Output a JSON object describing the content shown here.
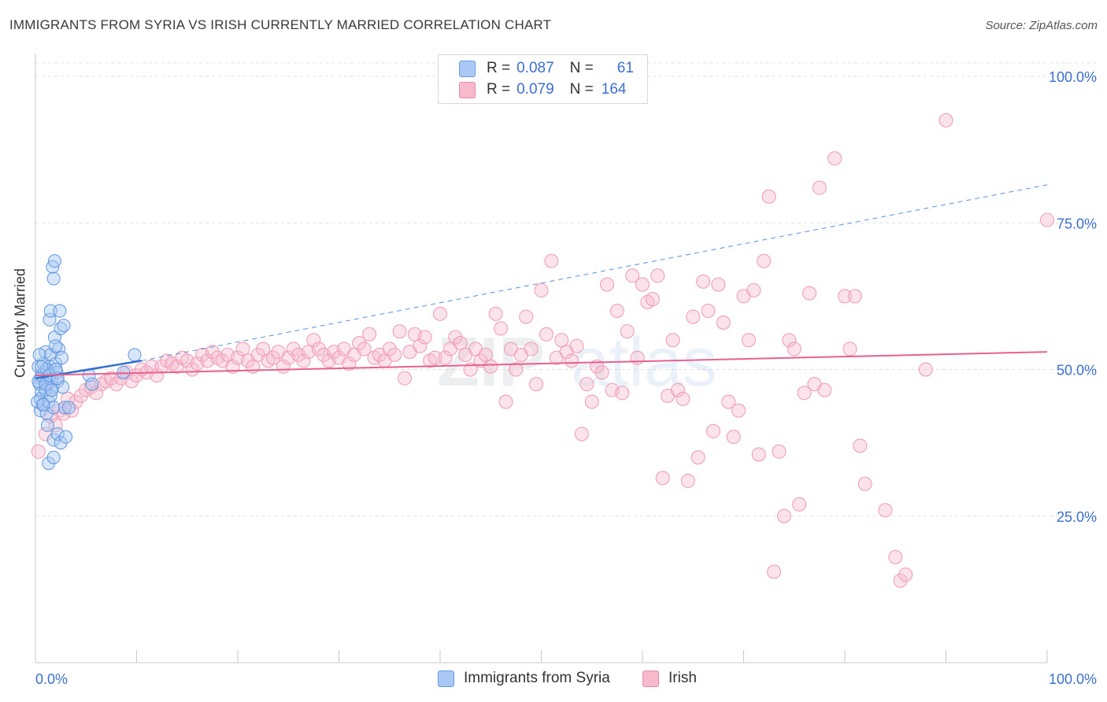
{
  "header": {
    "title": "IMMIGRANTS FROM SYRIA VS IRISH CURRENTLY MARRIED CORRELATION CHART",
    "source": "Source: ZipAtlas.com"
  },
  "legend": {
    "rows": [
      {
        "r_label": "R =",
        "r_value": "0.087",
        "n_label": "N =",
        "n_value": "61",
        "color": "#a9c8f5"
      },
      {
        "r_label": "R =",
        "r_value": "0.079",
        "n_label": "N =",
        "n_value": "164",
        "color": "#f7b9cc"
      }
    ]
  },
  "bottom_legend": {
    "items": [
      {
        "label": "Immigrants from Syria",
        "color": "#a9c8f5"
      },
      {
        "label": "Irish",
        "color": "#f7b9cc"
      }
    ]
  },
  "watermark": {
    "zip": "ZIP",
    "atlas": "atlas"
  },
  "chart_data": {
    "type": "scatter",
    "ylabel": "Currently Married",
    "x_tick_labels": {
      "left": "0.0%",
      "right": "100.0%"
    },
    "y_tick_labels": [
      "100.0%",
      "75.0%",
      "50.0%",
      "25.0%"
    ],
    "xlim": [
      0,
      100
    ],
    "ylim": [
      0,
      100
    ],
    "grid": true,
    "colors": {
      "syria": "#4a86d8",
      "irish": "#ef88a8",
      "syria_line": "#2f6fcf",
      "irish_line": "#e8608f",
      "axis_text": "#3d6fd0"
    },
    "series": [
      {
        "name": "Immigrants from Syria",
        "trend": {
          "x0": 0,
          "y0": 48.5,
          "x1": 10.5,
          "y1": 51.5,
          "dash_to_x": 100,
          "dash_to_y": 81.5
        },
        "points": [
          [
            0.3,
            50.5
          ],
          [
            0.5,
            48.5
          ],
          [
            0.4,
            47.5
          ],
          [
            0.6,
            46.0
          ],
          [
            0.5,
            45.0
          ],
          [
            0.7,
            44.0
          ],
          [
            0.5,
            43.0
          ],
          [
            0.8,
            51.0
          ],
          [
            1.0,
            53.0
          ],
          [
            0.9,
            49.5
          ],
          [
            1.2,
            47.5
          ],
          [
            1.0,
            46.5
          ],
          [
            1.3,
            44.5
          ],
          [
            1.1,
            42.5
          ],
          [
            1.5,
            52.5
          ],
          [
            1.4,
            50.5
          ],
          [
            1.6,
            48.5
          ],
          [
            1.7,
            47.0
          ],
          [
            1.5,
            45.5
          ],
          [
            1.8,
            43.5
          ],
          [
            2.0,
            51.0
          ],
          [
            2.1,
            49.5
          ],
          [
            2.2,
            48.0
          ],
          [
            2.3,
            53.5
          ],
          [
            1.9,
            55.5
          ],
          [
            1.4,
            58.5
          ],
          [
            1.5,
            60.0
          ],
          [
            1.7,
            67.5
          ],
          [
            1.8,
            65.5
          ],
          [
            1.9,
            68.5
          ],
          [
            2.4,
            60.0
          ],
          [
            2.5,
            57.0
          ],
          [
            2.8,
            57.5
          ],
          [
            2.0,
            54.0
          ],
          [
            2.6,
            52.0
          ],
          [
            2.7,
            47.0
          ],
          [
            1.2,
            40.5
          ],
          [
            1.8,
            38.0
          ],
          [
            2.2,
            39.0
          ],
          [
            2.5,
            37.5
          ],
          [
            3.0,
            38.5
          ],
          [
            1.3,
            34.0
          ],
          [
            1.8,
            35.0
          ],
          [
            5.3,
            49.0
          ],
          [
            5.6,
            47.5
          ],
          [
            8.7,
            49.5
          ],
          [
            9.8,
            52.5
          ],
          [
            0.2,
            44.5
          ],
          [
            0.3,
            48.0
          ],
          [
            0.6,
            49.0
          ],
          [
            1.0,
            47.5
          ],
          [
            1.1,
            50.0
          ],
          [
            1.4,
            49.0
          ],
          [
            0.8,
            44.0
          ],
          [
            2.0,
            50.0
          ],
          [
            2.2,
            48.5
          ],
          [
            0.4,
            52.5
          ],
          [
            0.6,
            50.5
          ],
          [
            1.6,
            46.5
          ],
          [
            2.9,
            43.5
          ],
          [
            3.3,
            43.5
          ]
        ]
      },
      {
        "name": "Irish",
        "trend": {
          "x0": 0,
          "y0": 49.0,
          "x1": 100,
          "y1": 53.0
        },
        "points": [
          [
            0.3,
            36.0
          ],
          [
            1.0,
            39.0
          ],
          [
            1.5,
            42.0
          ],
          [
            2.0,
            40.5
          ],
          [
            2.4,
            43.0
          ],
          [
            2.8,
            42.5
          ],
          [
            3.2,
            45.0
          ],
          [
            3.6,
            43.0
          ],
          [
            4.0,
            44.5
          ],
          [
            4.5,
            45.5
          ],
          [
            5.0,
            46.5
          ],
          [
            5.5,
            47.0
          ],
          [
            6.0,
            46.0
          ],
          [
            6.5,
            47.5
          ],
          [
            7.0,
            48.0
          ],
          [
            7.5,
            48.5
          ],
          [
            8.0,
            47.5
          ],
          [
            8.5,
            48.5
          ],
          [
            9.0,
            49.5
          ],
          [
            9.5,
            48.0
          ],
          [
            10.0,
            49.0
          ],
          [
            10.5,
            50.0
          ],
          [
            11.0,
            49.5
          ],
          [
            11.5,
            50.5
          ],
          [
            12.0,
            49.0
          ],
          [
            12.5,
            50.5
          ],
          [
            13.0,
            51.5
          ],
          [
            13.5,
            51.0
          ],
          [
            14.0,
            50.5
          ],
          [
            14.5,
            52.0
          ],
          [
            15.0,
            51.5
          ],
          [
            15.5,
            50.0
          ],
          [
            16.0,
            51.0
          ],
          [
            16.5,
            52.5
          ],
          [
            17.0,
            51.5
          ],
          [
            17.5,
            53.0
          ],
          [
            18.0,
            52.0
          ],
          [
            18.5,
            51.5
          ],
          [
            19.0,
            52.5
          ],
          [
            19.5,
            50.5
          ],
          [
            20.0,
            52.0
          ],
          [
            20.5,
            53.5
          ],
          [
            21.0,
            51.5
          ],
          [
            21.5,
            50.5
          ],
          [
            22.0,
            52.5
          ],
          [
            22.5,
            53.5
          ],
          [
            23.0,
            51.5
          ],
          [
            23.5,
            52.0
          ],
          [
            24.0,
            53.0
          ],
          [
            24.5,
            50.5
          ],
          [
            25.0,
            52.0
          ],
          [
            25.5,
            53.5
          ],
          [
            26.0,
            52.5
          ],
          [
            26.5,
            51.5
          ],
          [
            27.0,
            53.0
          ],
          [
            27.5,
            55.0
          ],
          [
            28.0,
            53.5
          ],
          [
            28.5,
            52.5
          ],
          [
            29.0,
            51.5
          ],
          [
            29.5,
            53.0
          ],
          [
            30.0,
            52.0
          ],
          [
            30.5,
            53.5
          ],
          [
            31.0,
            51.0
          ],
          [
            31.5,
            52.5
          ],
          [
            32.0,
            54.5
          ],
          [
            32.5,
            53.5
          ],
          [
            33.0,
            56.0
          ],
          [
            33.5,
            52.0
          ],
          [
            34.0,
            52.5
          ],
          [
            34.5,
            51.5
          ],
          [
            35.0,
            53.5
          ],
          [
            35.5,
            52.5
          ],
          [
            36.0,
            56.5
          ],
          [
            36.5,
            48.5
          ],
          [
            37.0,
            53.0
          ],
          [
            37.5,
            56.0
          ],
          [
            38.0,
            54.0
          ],
          [
            38.5,
            55.5
          ],
          [
            39.0,
            51.5
          ],
          [
            39.5,
            52.0
          ],
          [
            40.0,
            59.5
          ],
          [
            40.5,
            52.0
          ],
          [
            41.0,
            53.5
          ],
          [
            41.5,
            55.5
          ],
          [
            42.0,
            54.5
          ],
          [
            42.5,
            52.5
          ],
          [
            43.0,
            50.0
          ],
          [
            43.5,
            53.5
          ],
          [
            44.0,
            51.5
          ],
          [
            44.5,
            52.5
          ],
          [
            45.0,
            50.5
          ],
          [
            45.5,
            59.5
          ],
          [
            46.0,
            57.0
          ],
          [
            46.5,
            44.5
          ],
          [
            47.0,
            53.5
          ],
          [
            47.5,
            50.0
          ],
          [
            48.0,
            52.5
          ],
          [
            48.5,
            59.0
          ],
          [
            49.0,
            53.5
          ],
          [
            49.5,
            47.5
          ],
          [
            50.0,
            63.5
          ],
          [
            50.5,
            56.0
          ],
          [
            51.0,
            68.5
          ],
          [
            51.5,
            52.0
          ],
          [
            52.0,
            55.0
          ],
          [
            52.5,
            53.0
          ],
          [
            53.0,
            51.5
          ],
          [
            53.5,
            54.0
          ],
          [
            54.0,
            39.0
          ],
          [
            54.5,
            47.5
          ],
          [
            55.0,
            44.5
          ],
          [
            55.5,
            50.5
          ],
          [
            56.0,
            49.5
          ],
          [
            56.5,
            64.5
          ],
          [
            57.0,
            46.5
          ],
          [
            57.5,
            60.0
          ],
          [
            58.0,
            46.0
          ],
          [
            58.5,
            56.5
          ],
          [
            59.0,
            66.0
          ],
          [
            59.5,
            52.0
          ],
          [
            60.0,
            64.5
          ],
          [
            60.5,
            61.5
          ],
          [
            61.0,
            62.0
          ],
          [
            61.5,
            66.0
          ],
          [
            62.0,
            31.5
          ],
          [
            62.5,
            45.5
          ],
          [
            63.0,
            55.0
          ],
          [
            63.5,
            46.5
          ],
          [
            64.0,
            45.0
          ],
          [
            64.5,
            31.0
          ],
          [
            65.0,
            59.0
          ],
          [
            65.5,
            35.0
          ],
          [
            66.0,
            65.0
          ],
          [
            66.5,
            60.0
          ],
          [
            67.0,
            39.5
          ],
          [
            67.5,
            64.5
          ],
          [
            68.0,
            58.0
          ],
          [
            68.5,
            44.5
          ],
          [
            69.0,
            38.5
          ],
          [
            69.5,
            43.0
          ],
          [
            70.0,
            62.5
          ],
          [
            70.5,
            55.0
          ],
          [
            71.0,
            63.5
          ],
          [
            71.5,
            35.5
          ],
          [
            72.0,
            68.5
          ],
          [
            72.5,
            79.5
          ],
          [
            73.0,
            15.5
          ],
          [
            73.5,
            36.0
          ],
          [
            74.0,
            25.0
          ],
          [
            74.5,
            55.0
          ],
          [
            75.0,
            53.5
          ],
          [
            75.5,
            27.0
          ],
          [
            76.0,
            46.0
          ],
          [
            76.5,
            63.0
          ],
          [
            77.0,
            47.5
          ],
          [
            77.5,
            81.0
          ],
          [
            78.0,
            46.5
          ],
          [
            79.0,
            86.0
          ],
          [
            80.0,
            62.5
          ],
          [
            80.5,
            53.5
          ],
          [
            81.0,
            62.5
          ],
          [
            81.5,
            37.0
          ],
          [
            82.0,
            30.5
          ],
          [
            84.0,
            26.0
          ],
          [
            85.0,
            18.0
          ],
          [
            85.5,
            14.0
          ],
          [
            86.0,
            15.0
          ],
          [
            88.0,
            50.0
          ],
          [
            90.0,
            92.5
          ],
          [
            100.0,
            75.5
          ]
        ]
      }
    ]
  }
}
